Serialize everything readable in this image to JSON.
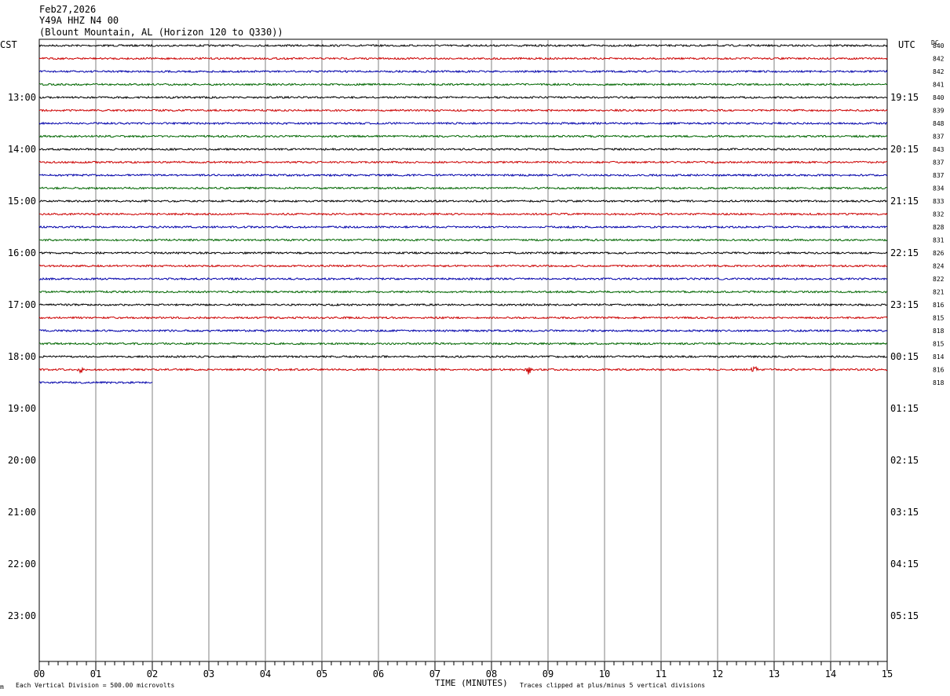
{
  "header": {
    "date": "Feb27,2026",
    "station": "Y49A HHZ N4 00",
    "location": "(Blount Mountain, AL (Horizon 120 to Q330))"
  },
  "left_timezone": "CST",
  "right_timezone": "UTC",
  "dc_header": "DC",
  "left_hour_labels": [
    "13:00",
    "14:00",
    "15:00",
    "16:00",
    "17:00",
    "18:00",
    "19:00",
    "20:00",
    "21:00",
    "22:00",
    "23:00"
  ],
  "right_hour_labels": [
    "19:15",
    "20:15",
    "21:15",
    "22:15",
    "23:15",
    "00:15",
    "01:15",
    "02:15",
    "03:15",
    "04:15",
    "05:15"
  ],
  "footer": {
    "scale_note": "Each Vertical Division =  500.00 microvolts",
    "x_axis_label": "TIME (MINUTES)",
    "clip_note": "Traces clipped at plus/minus 5 vertical divisions",
    "corner_mark": "m"
  },
  "colors": {
    "black": "#000000",
    "red": "#cc0000",
    "blue": "#0000aa",
    "green": "#006600",
    "grid": "#808080"
  },
  "chart_data": {
    "type": "line",
    "subtype": "helicorder",
    "x_label": "TIME (MINUTES)",
    "x_ticks": [
      "00",
      "01",
      "02",
      "03",
      "04",
      "05",
      "06",
      "07",
      "08",
      "09",
      "10",
      "11",
      "12",
      "13",
      "14",
      "15"
    ],
    "xlim": [
      0,
      15
    ],
    "minutes_per_line": 15,
    "trace_color_cycle": [
      "black",
      "red",
      "blue",
      "green"
    ],
    "lines_per_hour": 4,
    "first_line_time_cst": "12:00",
    "dc_offsets": [
      840,
      842,
      842,
      841,
      840,
      839,
      848,
      837,
      843,
      837,
      837,
      834,
      833,
      832,
      828,
      831,
      826,
      824,
      822,
      821,
      816,
      815,
      818,
      815,
      814,
      816,
      818
    ],
    "last_line_end_minute": 2,
    "events": [
      {
        "line": 25,
        "minute": 0.75,
        "amplitude_divisions": 0.7,
        "kind": "spike"
      },
      {
        "line": 25,
        "minute": 8.65,
        "amplitude_divisions": 1.5,
        "kind": "burst"
      },
      {
        "line": 25,
        "minute": 12.65,
        "amplitude_divisions": 0.6,
        "kind": "burst"
      }
    ]
  }
}
